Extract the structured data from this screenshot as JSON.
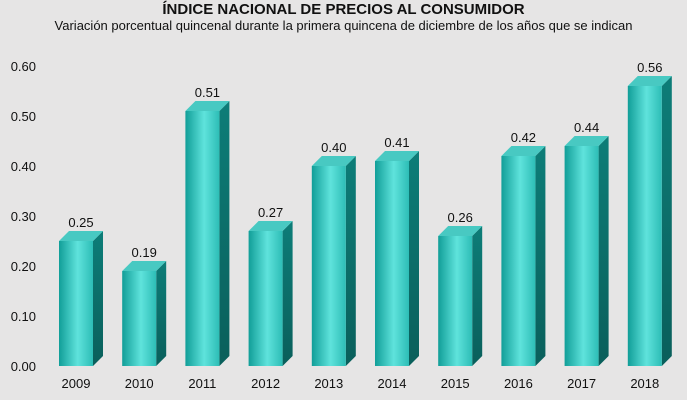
{
  "chart_data": {
    "type": "bar",
    "title": "ÍNDICE NACIONAL DE PRECIOS AL CONSUMIDOR",
    "subtitle": "Variación porcentual quincenal durante la primera quincena de diciembre de los años que se indican",
    "xlabel": "",
    "ylabel": "",
    "categories": [
      "2009",
      "2010",
      "2011",
      "2012",
      "2013",
      "2014",
      "2015",
      "2016",
      "2017",
      "2018"
    ],
    "values": [
      0.25,
      0.19,
      0.51,
      0.27,
      0.4,
      0.41,
      0.26,
      0.42,
      0.44,
      0.56
    ],
    "value_labels": [
      "0.25",
      "0.19",
      "0.51",
      "0.27",
      "0.40",
      "0.41",
      "0.26",
      "0.42",
      "0.44",
      "0.56"
    ],
    "y_ticks": [
      "0.00",
      "0.10",
      "0.20",
      "0.30",
      "0.40",
      "0.50",
      "0.60"
    ],
    "ylim": [
      0,
      0.6
    ],
    "grid": false,
    "legend": "none",
    "colors": {
      "bar_front_light": "#5fe3dc",
      "bar_front_dark": "#119e98",
      "bar_top": "#48c9c2",
      "bar_side": "#0b6f6b",
      "background": "#e6e5e5"
    }
  }
}
